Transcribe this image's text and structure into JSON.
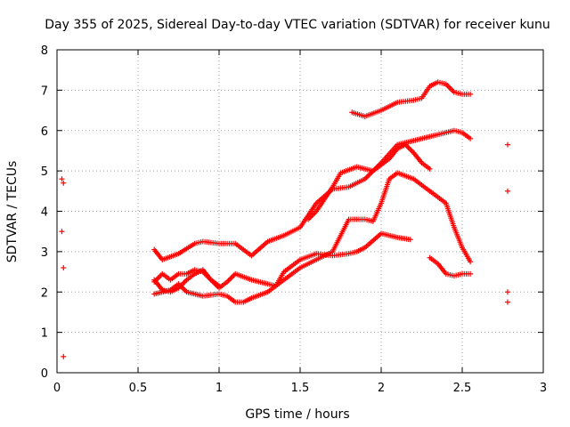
{
  "chart_data": {
    "type": "scatter",
    "title": "Day 355 of 2025, Sidereal Day-to-day VTEC variation (SDTVAR) for receiver kunu",
    "xlabel": "GPS time / hours",
    "ylabel": "SDTVAR / TECUs",
    "xlim": [
      0,
      3
    ],
    "ylim": [
      0,
      8
    ],
    "x_ticks": [
      0,
      0.5,
      1,
      1.5,
      2,
      2.5,
      3
    ],
    "x_tick_labels": [
      "0",
      "0.5",
      "1",
      "1.5",
      "2",
      "2.5",
      "3"
    ],
    "y_ticks": [
      0,
      1,
      2,
      3,
      4,
      5,
      6,
      7,
      8
    ],
    "y_tick_labels": [
      "0",
      "1",
      "2",
      "3",
      "4",
      "5",
      "6",
      "7",
      "8"
    ],
    "grid": true,
    "marker": "+",
    "color": "#ff0000",
    "series": [
      {
        "name": "isolated-early",
        "points": [
          [
            0.03,
            4.8
          ],
          [
            0.04,
            4.7
          ],
          [
            0.03,
            3.5
          ],
          [
            0.04,
            2.6
          ],
          [
            0.04,
            0.4
          ]
        ]
      },
      {
        "name": "isolated-late",
        "points": [
          [
            2.78,
            5.65
          ],
          [
            2.78,
            4.5
          ],
          [
            2.78,
            2.0
          ],
          [
            2.78,
            1.75
          ]
        ]
      },
      {
        "name": "track-a",
        "points": [
          [
            0.6,
            3.05
          ],
          [
            0.65,
            2.8
          ],
          [
            0.75,
            2.95
          ],
          [
            0.85,
            3.2
          ],
          [
            0.9,
            3.25
          ],
          [
            1.0,
            3.2
          ],
          [
            1.1,
            3.2
          ],
          [
            1.2,
            2.9
          ],
          [
            1.3,
            3.25
          ],
          [
            1.4,
            3.4
          ],
          [
            1.5,
            3.6
          ],
          [
            1.6,
            4.2
          ],
          [
            1.7,
            4.55
          ],
          [
            1.8,
            4.6
          ],
          [
            1.9,
            4.8
          ],
          [
            2.0,
            5.2
          ],
          [
            2.1,
            5.65
          ],
          [
            2.2,
            5.75
          ],
          [
            2.3,
            5.85
          ],
          [
            2.45,
            6.0
          ],
          [
            2.5,
            5.95
          ],
          [
            2.55,
            5.8
          ]
        ]
      },
      {
        "name": "track-b",
        "points": [
          [
            1.55,
            3.8
          ],
          [
            1.6,
            4.0
          ],
          [
            1.7,
            4.6
          ],
          [
            1.75,
            4.95
          ],
          [
            1.85,
            5.1
          ],
          [
            1.95,
            5.0
          ],
          [
            2.05,
            5.3
          ],
          [
            2.1,
            5.55
          ],
          [
            2.15,
            5.65
          ],
          [
            2.2,
            5.45
          ],
          [
            2.25,
            5.2
          ],
          [
            2.3,
            5.05
          ]
        ]
      },
      {
        "name": "track-c",
        "points": [
          [
            1.82,
            6.45
          ],
          [
            1.9,
            6.35
          ],
          [
            2.0,
            6.5
          ],
          [
            2.1,
            6.7
          ],
          [
            2.2,
            6.75
          ],
          [
            2.25,
            6.8
          ],
          [
            2.3,
            7.1
          ],
          [
            2.35,
            7.2
          ],
          [
            2.4,
            7.15
          ],
          [
            2.45,
            6.95
          ],
          [
            2.5,
            6.9
          ],
          [
            2.55,
            6.9
          ]
        ]
      },
      {
        "name": "track-d",
        "points": [
          [
            0.6,
            2.25
          ],
          [
            0.65,
            2.45
          ],
          [
            0.7,
            2.3
          ],
          [
            0.75,
            2.45
          ],
          [
            0.8,
            2.45
          ],
          [
            0.85,
            2.55
          ],
          [
            0.9,
            2.5
          ],
          [
            0.95,
            2.3
          ],
          [
            1.0,
            2.1
          ],
          [
            1.05,
            2.25
          ],
          [
            1.1,
            2.45
          ],
          [
            1.2,
            2.3
          ],
          [
            1.3,
            2.2
          ],
          [
            1.35,
            2.15
          ],
          [
            1.4,
            2.5
          ],
          [
            1.5,
            2.8
          ],
          [
            1.6,
            2.95
          ],
          [
            1.7,
            2.9
          ],
          [
            1.8,
            2.95
          ],
          [
            1.85,
            3.0
          ],
          [
            1.9,
            3.1
          ],
          [
            2.0,
            3.45
          ],
          [
            2.1,
            3.35
          ],
          [
            2.18,
            3.3
          ]
        ]
      },
      {
        "name": "track-e",
        "points": [
          [
            0.6,
            1.95
          ],
          [
            0.7,
            2.05
          ],
          [
            0.75,
            2.2
          ],
          [
            0.8,
            2.0
          ],
          [
            0.9,
            1.9
          ],
          [
            1.0,
            1.95
          ],
          [
            1.05,
            1.9
          ],
          [
            1.1,
            1.75
          ],
          [
            1.15,
            1.75
          ],
          [
            1.2,
            1.85
          ],
          [
            1.3,
            2.0
          ],
          [
            1.4,
            2.3
          ],
          [
            1.5,
            2.6
          ],
          [
            1.6,
            2.8
          ],
          [
            1.7,
            3.0
          ],
          [
            1.8,
            3.8
          ],
          [
            1.9,
            3.8
          ],
          [
            1.95,
            3.75
          ],
          [
            2.0,
            4.2
          ],
          [
            2.05,
            4.8
          ],
          [
            2.1,
            4.95
          ],
          [
            2.2,
            4.8
          ],
          [
            2.3,
            4.5
          ],
          [
            2.4,
            4.2
          ],
          [
            2.45,
            3.6
          ],
          [
            2.5,
            3.1
          ],
          [
            2.55,
            2.75
          ]
        ]
      },
      {
        "name": "track-f",
        "points": [
          [
            0.6,
            2.3
          ],
          [
            0.65,
            2.05
          ],
          [
            0.7,
            2.0
          ],
          [
            0.75,
            2.1
          ],
          [
            0.8,
            2.3
          ],
          [
            0.85,
            2.45
          ],
          [
            0.9,
            2.55
          ],
          [
            0.95,
            2.3
          ],
          [
            1.0,
            2.15
          ]
        ]
      },
      {
        "name": "track-g",
        "points": [
          [
            2.3,
            2.85
          ],
          [
            2.35,
            2.7
          ],
          [
            2.4,
            2.45
          ],
          [
            2.45,
            2.4
          ],
          [
            2.5,
            2.45
          ],
          [
            2.55,
            2.45
          ]
        ]
      }
    ]
  }
}
